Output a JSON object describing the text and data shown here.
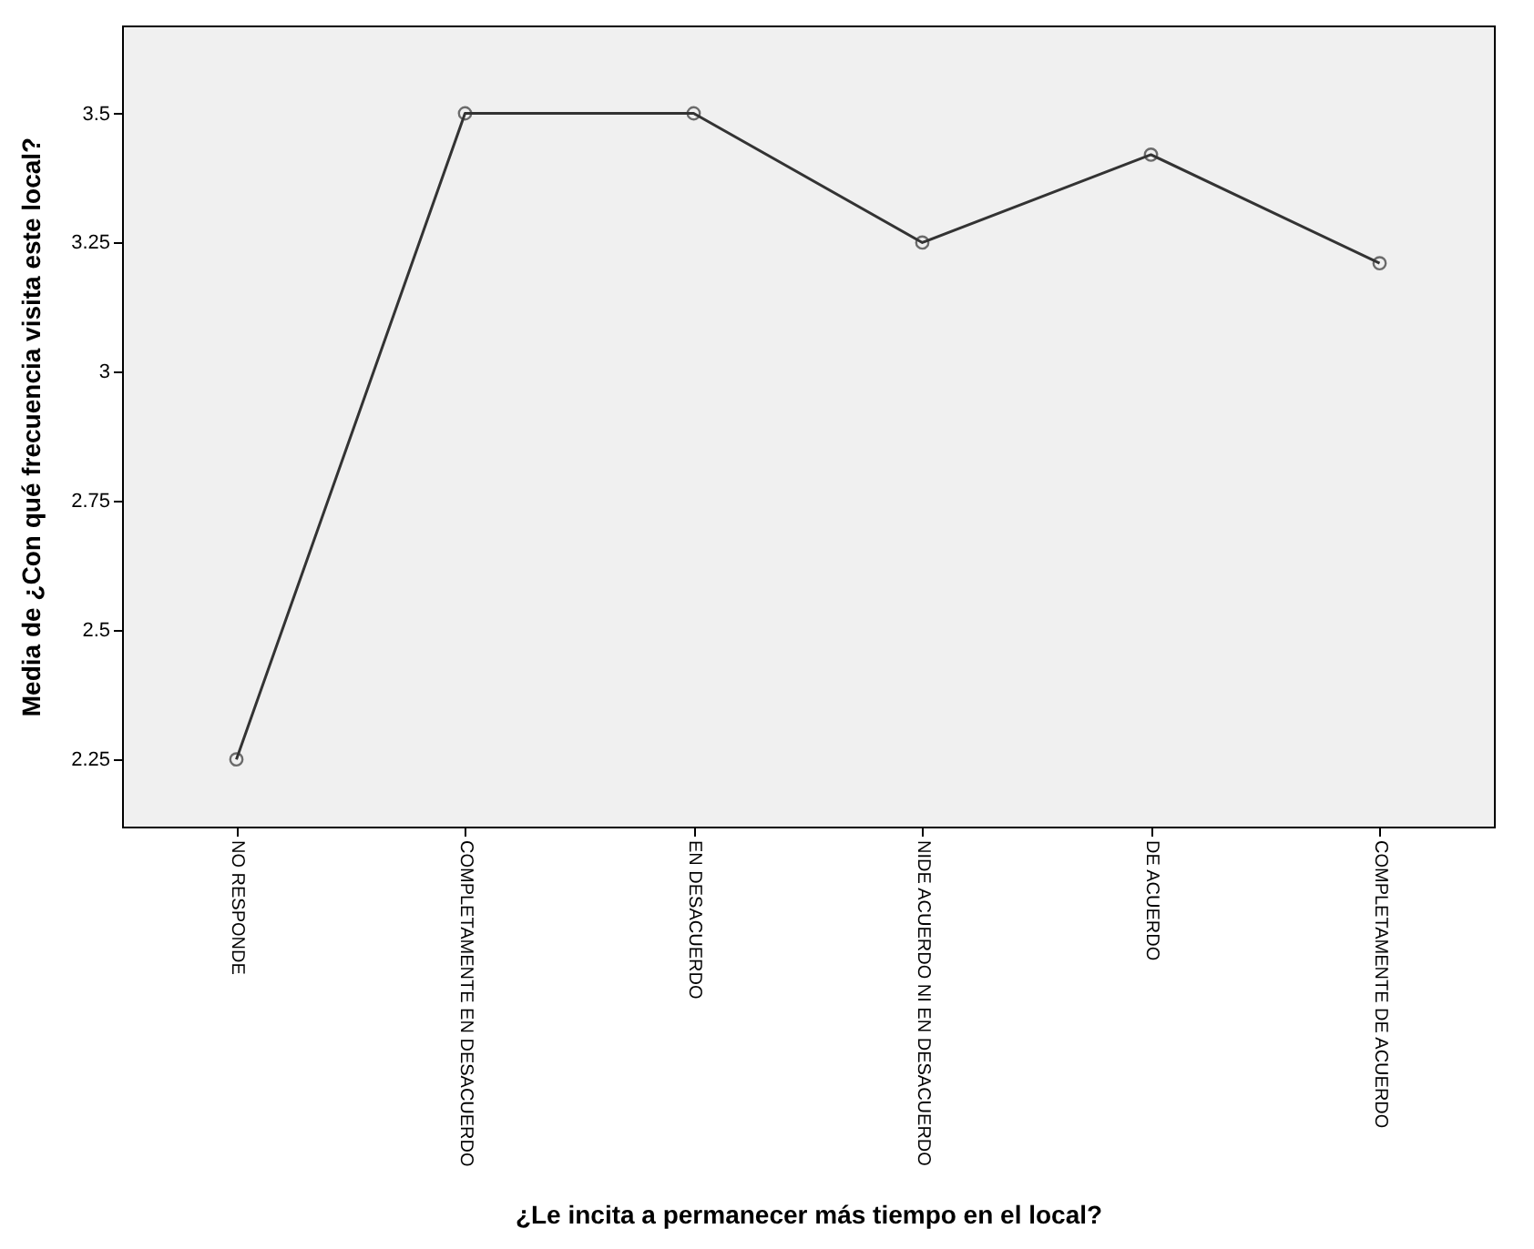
{
  "chart_data": {
    "type": "line",
    "xlabel": "¿Le incita a permanecer más tiempo en el local?",
    "ylabel": "Media de ¿Con qué frecuencia visita este local?",
    "categories": [
      "NO RESPONDE",
      "COMPLETAMENTE EN DESACUERDO",
      "EN DESACUERDO",
      "NIDE ACUERDO NI EN DESACUERDO",
      "DE ACUERDO",
      "COMPLETAMENTE DE ACUERDO"
    ],
    "series": [
      {
        "color": "#333333",
        "values": [
          2.25,
          3.5,
          3.5,
          3.25,
          3.42,
          3.21
        ]
      }
    ],
    "ylim": [
      2.12,
      3.67
    ],
    "yticks": [
      2.25,
      2.5,
      2.75,
      3,
      3.25,
      3.5
    ],
    "grid": false,
    "marker": "circle",
    "line_style": "solid"
  }
}
